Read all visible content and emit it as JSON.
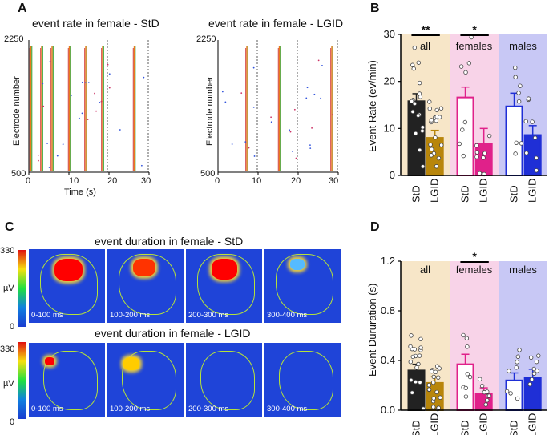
{
  "panels": {
    "A": {
      "letter": "A",
      "plots": [
        {
          "title": "event rate in female - StD",
          "ylabel": "Electrode number",
          "xlabel": "Time (s)",
          "yticks": [
            "2250",
            "500"
          ],
          "xticks": [
            "0",
            "10",
            "20",
            "30"
          ]
        },
        {
          "title": "event rate in female - LGID",
          "ylabel": "Electrode number",
          "xlabel": "Time (s)",
          "yticks": [
            "2250",
            "500"
          ],
          "xticks": [
            "0",
            "10",
            "20",
            "30"
          ]
        }
      ]
    },
    "B": {
      "letter": "B",
      "ylabel": "Event Rate (ev/min)"
    },
    "C": {
      "letter": "C",
      "row_titles": [
        "event duration in female - StD",
        "event duration in female - LGID"
      ],
      "time_labels": [
        "0-100 ms",
        "100-200 ms",
        "200-300 ms",
        "300-400 ms"
      ],
      "colorbar": {
        "max": "330",
        "min": "0",
        "unit": "µV"
      }
    },
    "D": {
      "letter": "D",
      "ylabel": "Event Dururation (s)"
    }
  },
  "colors": {
    "std": "#222222",
    "lgid_all": "#b8860b",
    "lgid_fem": "#e0218a",
    "lgid_male": "#1f2fd6",
    "bg_all": "#f7e6c8",
    "bg_fem": "#f8d3e8",
    "bg_male": "#c8c8f5"
  },
  "chart_data": [
    {
      "type": "bar",
      "ylabel": "Event Rate (ev/min)",
      "ylim": [
        0,
        30
      ],
      "yticks": [
        "0",
        "10",
        "20",
        "30"
      ],
      "groups": [
        "all",
        "females",
        "males"
      ],
      "categories": [
        "StD",
        "LGID"
      ],
      "series": [
        {
          "name": "all",
          "values": [
            15.8,
            8.0
          ],
          "errors": [
            1.6,
            1.6
          ]
        },
        {
          "name": "females",
          "values": [
            16.6,
            6.8
          ],
          "errors": [
            2.2,
            3.2
          ]
        },
        {
          "name": "males",
          "values": [
            14.7,
            8.6
          ],
          "errors": [
            2.8,
            2.0
          ]
        }
      ],
      "significance": [
        {
          "group": "all",
          "label": "**"
        },
        {
          "group": "females",
          "label": "*"
        }
      ]
    },
    {
      "type": "bar",
      "ylabel": "Event Dururation (s)",
      "ylim": [
        0,
        1.2
      ],
      "yticks": [
        "0.0",
        "0.4",
        "0.8",
        "1.2"
      ],
      "groups": [
        "all",
        "females",
        "males"
      ],
      "categories": [
        "StD",
        "LGID"
      ],
      "series": [
        {
          "name": "all",
          "values": [
            0.32,
            0.22
          ],
          "errors": [
            0.05,
            0.05
          ]
        },
        {
          "name": "females",
          "values": [
            0.37,
            0.13
          ],
          "errors": [
            0.08,
            0.05
          ]
        },
        {
          "name": "males",
          "values": [
            0.24,
            0.26
          ],
          "errors": [
            0.06,
            0.07
          ]
        }
      ],
      "significance": [
        {
          "group": "females",
          "label": "*"
        }
      ]
    }
  ]
}
